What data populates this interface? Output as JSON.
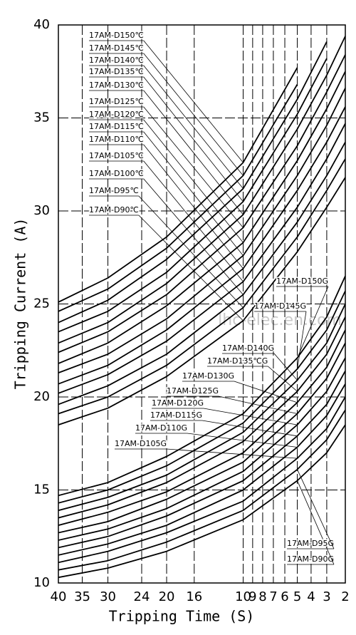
{
  "chart_data": {
    "type": "line",
    "x_label": "Tripping Time (S)",
    "y_label": "Tripping Current (A)",
    "watermark": "lhc-elec.en.com",
    "color": "#000000",
    "grid": true,
    "xscale": "sqrt",
    "xlim": [
      40,
      2
    ],
    "xticks": [
      40,
      35,
      30,
      24,
      20,
      16,
      10,
      9,
      8,
      7,
      6,
      5,
      4,
      3,
      2
    ],
    "ylim": [
      10,
      40
    ],
    "yticks": [
      10,
      15,
      20,
      25,
      30,
      35,
      40
    ],
    "x": [
      40,
      30,
      20,
      10,
      5,
      3,
      2
    ],
    "series": [
      {
        "name": "17AM-D90℃",
        "values": [
          18.5,
          19.4,
          21.1,
          24.1,
          27.8,
          30.2,
          31.8
        ]
      },
      {
        "name": "17AM-D95℃",
        "values": [
          19.1,
          20.0,
          21.7,
          24.8,
          28.6,
          31.1,
          32.8
        ]
      },
      {
        "name": "17AM-D100℃",
        "values": [
          19.6,
          20.6,
          22.3,
          25.5,
          29.4,
          31.9,
          33.7
        ]
      },
      {
        "name": "17AM-D105℃",
        "values": [
          20.2,
          21.2,
          23.0,
          26.2,
          30.2,
          32.8,
          34.7
        ]
      },
      {
        "name": "17AM-D110℃",
        "values": [
          20.7,
          21.7,
          23.6,
          26.9,
          31.1,
          33.7,
          35.6
        ]
      },
      {
        "name": "17AM-D115℃",
        "values": [
          21.3,
          22.3,
          24.2,
          27.6,
          31.9,
          34.6,
          36.6
        ]
      },
      {
        "name": "17AM-D120℃",
        "values": [
          21.8,
          22.9,
          24.9,
          28.3,
          32.7,
          35.5,
          37.5
        ]
      },
      {
        "name": "17AM-D125℃",
        "values": [
          22.4,
          23.5,
          25.5,
          29.1,
          33.5,
          36.4,
          38.4
        ]
      },
      {
        "name": "17AM-D130℃",
        "values": [
          22.9,
          24.0,
          26.1,
          29.8,
          34.4,
          37.3,
          39.4
        ]
      },
      {
        "name": "17AM-D135℃",
        "values": [
          23.5,
          24.6,
          26.7,
          30.5,
          35.2,
          38.2,
          null
        ]
      },
      {
        "name": "17AM-D140℃",
        "values": [
          24.0,
          25.2,
          27.4,
          31.2,
          36.0,
          39.1,
          null
        ]
      },
      {
        "name": "17AM-D145℃",
        "values": [
          24.6,
          25.8,
          28.0,
          31.9,
          36.8,
          null,
          null
        ]
      },
      {
        "name": "17AM-D150℃",
        "values": [
          25.1,
          26.4,
          28.6,
          32.6,
          37.7,
          null,
          null
        ]
      },
      {
        "name": "17AM-D90G",
        "values": [
          10.3,
          10.8,
          11.7,
          13.4,
          15.5,
          17.0,
          18.5
        ]
      },
      {
        "name": "17AM-D95G",
        "values": [
          10.7,
          11.2,
          12.2,
          13.9,
          16.1,
          17.7,
          19.3
        ]
      },
      {
        "name": "17AM-D105G",
        "values": [
          11.1,
          11.7,
          12.7,
          14.4,
          16.7,
          18.3,
          20.0
        ]
      },
      {
        "name": "17AM-D110G",
        "values": [
          11.5,
          12.1,
          13.1,
          15.0,
          17.3,
          19.0,
          20.7
        ]
      },
      {
        "name": "17AM-D115G",
        "values": [
          11.9,
          12.5,
          13.6,
          15.5,
          17.9,
          19.6,
          21.4
        ]
      },
      {
        "name": "17AM-D120G",
        "values": [
          12.3,
          12.9,
          14.0,
          16.0,
          18.5,
          20.3,
          22.1
        ]
      },
      {
        "name": "17AM-D125G",
        "values": [
          12.7,
          13.3,
          14.5,
          16.5,
          19.1,
          21.0,
          22.9
        ]
      },
      {
        "name": "17AM-D130G",
        "values": [
          13.1,
          13.8,
          14.9,
          17.0,
          19.7,
          21.6,
          23.6
        ]
      },
      {
        "name": "17AM-D135℃G",
        "values": [
          13.5,
          14.2,
          15.4,
          17.6,
          20.3,
          22.3,
          24.3
        ]
      },
      {
        "name": "17AM-D140G",
        "values": [
          13.9,
          14.6,
          15.8,
          18.1,
          20.9,
          22.9,
          25.0
        ]
      },
      {
        "name": "17AM-D145G",
        "values": [
          14.3,
          15.0,
          16.3,
          18.6,
          21.5,
          23.6,
          25.7
        ]
      },
      {
        "name": "17AM-D150G",
        "values": [
          14.7,
          15.4,
          16.8,
          19.1,
          22.1,
          24.3,
          26.5
        ]
      }
    ]
  }
}
